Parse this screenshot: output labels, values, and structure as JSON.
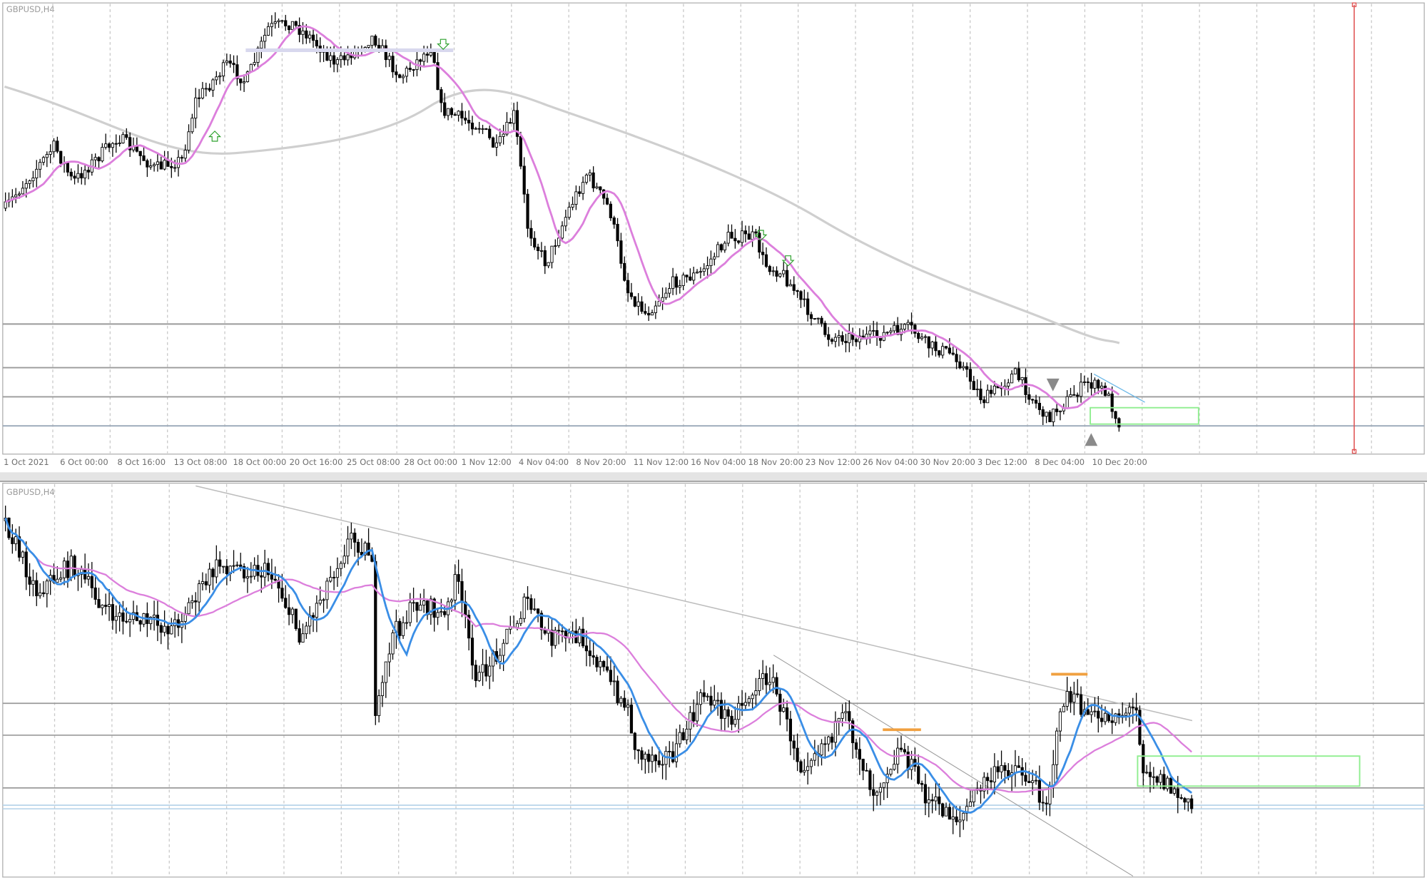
{
  "top_panel": {
    "symbol_label": "GBPUSD,H4",
    "time_axis": [
      "1 Oct 2021",
      "6 Oct 00:00",
      "8 Oct 16:00",
      "13 Oct 08:00",
      "18 Oct 00:00",
      "20 Oct 16:00",
      "25 Oct 08:00",
      "28 Oct 00:00",
      "1 Nov 12:00",
      "4 Nov 04:00",
      "8 Nov 20:00",
      "11 Nov 12:00",
      "16 Nov 04:00",
      "18 Nov 20:00",
      "23 Nov 12:00",
      "26 Nov 04:00",
      "30 Nov 20:00",
      "3 Dec 12:00",
      "8 Dec 04:00",
      "10 Dec 20:00"
    ]
  },
  "bottom_panel": {
    "symbol_label": "GBPUSD,H4"
  }
}
